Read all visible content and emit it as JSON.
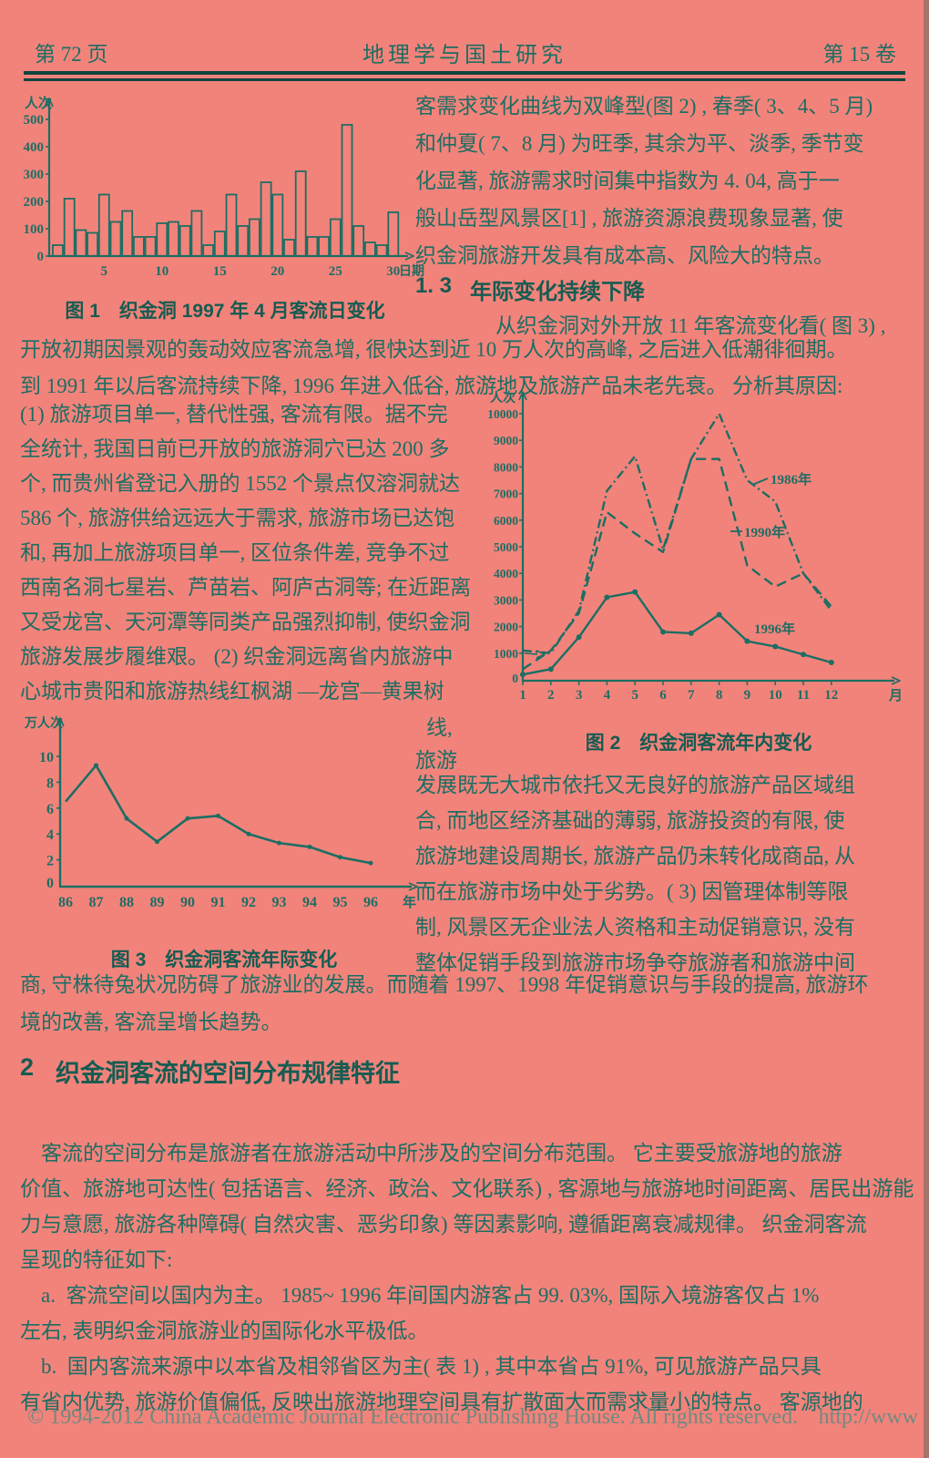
{
  "page": {
    "header": {
      "page_no": "第 72 页",
      "journal": "地理学与国土研究",
      "volume": "第 15 卷"
    },
    "colors": {
      "background": "#f2837b",
      "ink": "#1c6e63",
      "rule": "#0d453e",
      "watermark": "#688a82"
    }
  },
  "text": {
    "right_top": "客需求变化曲线为双峰型(图 2) , 春季( 3、4、5 月)\n和仲夏( 7、8 月) 为旺季, 其余为平、淡季, 季节变\n化显著, 旅游需求时间集中指数为 4. 04, 高于一\n般山岳型风景区[1] , 旅游资源浪费现象显著, 使\n织金洞旅游开发具有成本高、风险大的特点。",
    "sec13_num": "1. 3",
    "sec13_title": "年际变化持续下降",
    "sec13_lead": "从织金洞对外开放 11 年客流变化看( 图 3) ,",
    "fullwidth1": "开放初期因景观的轰动效应客流急增, 很快达到近 10 万人次的高峰, 之后进入低潮徘徊期。\n到 1991 年以后客流持续下降, 1996 年进入低谷, 旅游地及旅游产品未老先衰。 分析其原因:",
    "left_col": "(1) 旅游项目单一, 替代性强, 客流有限。据不完\n全统计, 我国日前已开放的旅游洞穴已达 200 多\n个, 而贵州省登记入册的 1552 个景点仅溶洞就达\n586 个, 旅游供给远远大于需求, 旅游市场已达饱\n和, 再加上旅游项目单一, 区位条件差, 竞争不过\n西南名洞七星岩、芦苗岩、阿庐古洞等; 在近距离\n又受龙宫、天河潭等同类产品强烈抑制, 使织金洞\n旅游发展步履维艰。 (2) 织金洞远离省内旅游中\n心城市贵阳和旅游热线红枫湖 —龙宫—黄果树",
    "wrap1": "线,",
    "wrap2": "旅游",
    "right_mid": "发展既无大城市依托又无良好的旅游产品区域组\n合, 而地区经济基础的薄弱, 旅游投资的有限, 使\n旅游地建设周期长, 旅游产品仍未转化成商品, 从\n而在旅游市场中处于劣势。( 3) 因管理体制等限\n制, 风景区无企业法人资格和主动促销意识, 没有\n整体促销手段到旅游市场争夺旅游者和旅游中间",
    "fullwidth2": "商, 守株待兔状况防碍了旅游业的发展。而随着 1997、1998 年促销意识与手段的提高, 旅游环\n境的改善, 客流呈增长趋势。",
    "sec2_num": "2",
    "sec2_title": "织金洞客流的空间分布规律特征",
    "sec2_para": "    客流的空间分布是旅游者在旅游活动中所涉及的空间分布范围。 它主要受旅游地的旅游\n价值、旅游地可达性( 包括语言、经济、政治、文化联系) , 客源地与旅游地时间距离、居民出游能\n力与意愿, 旅游各种障碍( 自然灾害、恶劣印象) 等因素影响, 遵循距离衰减规律。 织金洞客流\n呈现的特征如下:\n    a.  客流空间以国内为主。 1985~ 1996 年间国内游客占 99. 03%, 国际入境游客仅占 1%\n左右, 表明织金洞旅游业的国际化水平极低。\n    b.  国内客流来源中以本省及相邻省区为主( 表 1) , 其中本省占 91%, 可见旅游产品只具\n有省内优势, 旅游价值偏低, 反映出旅游地理空间具有扩散面大而需求量小的特点。 客源地的"
  },
  "figures": {
    "fig1_caption": "图 1　织金洞 1997 年 4 月客流日变化",
    "fig2_caption": "图 2　织金洞客流年内变化",
    "fig3_caption": "图 3　织金洞客流年际变化"
  },
  "footer": {
    "watermark": "© 1994-2012 China Academic Journal Electronic Publishing House. All rights reserved.",
    "link": "http://www"
  },
  "chart_data": [
    {
      "id": "fig1",
      "type": "bar",
      "title": "织金洞 1997 年 4 月客流日变化",
      "ylabel": "人次",
      "xlabel": "日期",
      "categories": [
        1,
        2,
        3,
        4,
        5,
        6,
        7,
        8,
        9,
        10,
        11,
        12,
        13,
        14,
        15,
        16,
        17,
        18,
        19,
        20,
        21,
        22,
        23,
        24,
        25,
        26,
        27,
        28,
        29,
        30
      ],
      "values": [
        40,
        210,
        95,
        85,
        225,
        125,
        165,
        70,
        70,
        120,
        125,
        110,
        165,
        40,
        90,
        225,
        110,
        135,
        270,
        225,
        60,
        310,
        70,
        70,
        135,
        480,
        110,
        50,
        40,
        160
      ],
      "yticks": [
        0,
        100,
        200,
        300,
        400,
        500
      ],
      "xticks": [
        5,
        10,
        15,
        20,
        25,
        30
      ],
      "ylim": [
        0,
        520
      ]
    },
    {
      "id": "fig2",
      "type": "line",
      "title": "织金洞客流年内变化",
      "ylabel": "人次",
      "xlabel": "月",
      "x": [
        1,
        2,
        3,
        4,
        5,
        6,
        7,
        8,
        9,
        10,
        11,
        12
      ],
      "yticks": [
        0,
        1000,
        2000,
        3000,
        4000,
        5000,
        6000,
        7000,
        8000,
        9000,
        10000
      ],
      "ylim": [
        0,
        10400
      ],
      "legend_position": "inline-labels",
      "series": [
        {
          "name": "1986年",
          "values": [
            1100,
            1000,
            2600,
            7100,
            8400,
            4900,
            8300,
            10000,
            7500,
            6700,
            4000,
            2600
          ]
        },
        {
          "name": "1990年",
          "values": [
            400,
            1100,
            2500,
            6300,
            5500,
            4800,
            8300,
            8300,
            4300,
            3500,
            4000,
            2750
          ]
        },
        {
          "name": "1996年",
          "values": [
            200,
            400,
            1600,
            3100,
            3300,
            1800,
            1750,
            2450,
            1450,
            1250,
            950,
            650
          ]
        }
      ]
    },
    {
      "id": "fig3",
      "type": "line",
      "title": "织金洞客流年际变化",
      "ylabel": "万人次",
      "xlabel": "年",
      "x": [
        86,
        87,
        88,
        89,
        90,
        91,
        92,
        93,
        94,
        95,
        96
      ],
      "yticks": [
        0,
        2,
        4,
        6,
        8,
        10
      ],
      "ylim": [
        0,
        11.5
      ],
      "series": [
        {
          "values": [
            6.5,
            9.3,
            5.2,
            3.4,
            5.2,
            5.4,
            4.0,
            3.3,
            3.0,
            2.2,
            1.75
          ]
        }
      ]
    }
  ]
}
